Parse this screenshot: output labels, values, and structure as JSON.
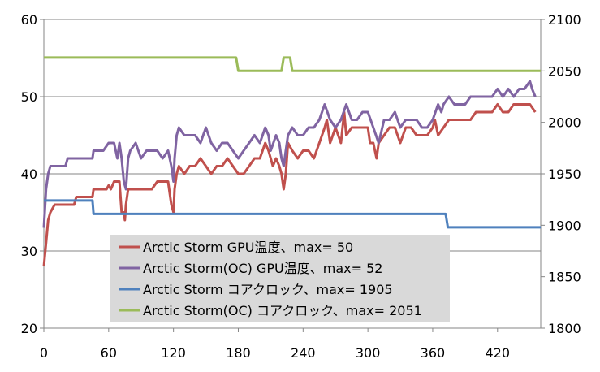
{
  "chart_data": {
    "type": "line",
    "title": "",
    "xlabel": "",
    "ylabel": "",
    "y2label": "",
    "xlim": [
      0,
      460
    ],
    "ylim": [
      20,
      60
    ],
    "y2lim": [
      1800,
      2100
    ],
    "x_ticks": [
      "0",
      "60",
      "120",
      "180",
      "240",
      "300",
      "360",
      "420"
    ],
    "y_ticks": [
      "20",
      "30",
      "40",
      "50",
      "60"
    ],
    "y2_ticks": [
      "1800",
      "1850",
      "1900",
      "1950",
      "2000",
      "2050",
      "2100"
    ],
    "grid": "horizontal",
    "legend_position": "bottom-center",
    "series": [
      {
        "name": "Arctic Storm GPU温度、max= 50",
        "axis": "left",
        "color": "#C0504D",
        "points": [
          [
            0,
            28
          ],
          [
            2,
            31
          ],
          [
            4,
            34
          ],
          [
            6,
            35
          ],
          [
            10,
            36
          ],
          [
            20,
            36
          ],
          [
            22,
            36
          ],
          [
            28,
            36
          ],
          [
            30,
            37
          ],
          [
            35,
            37
          ],
          [
            45,
            37
          ],
          [
            46,
            38
          ],
          [
            55,
            38
          ],
          [
            58,
            38
          ],
          [
            60,
            38.5
          ],
          [
            62,
            38
          ],
          [
            65,
            39
          ],
          [
            70,
            39
          ],
          [
            72,
            35
          ],
          [
            74,
            35
          ],
          [
            75,
            34
          ],
          [
            76,
            36
          ],
          [
            78,
            38
          ],
          [
            80,
            38
          ],
          [
            85,
            38
          ],
          [
            90,
            38
          ],
          [
            95,
            38
          ],
          [
            100,
            38
          ],
          [
            105,
            39
          ],
          [
            110,
            39
          ],
          [
            115,
            39
          ],
          [
            118,
            36
          ],
          [
            120,
            35
          ],
          [
            121,
            38
          ],
          [
            123,
            40
          ],
          [
            125,
            41
          ],
          [
            130,
            40
          ],
          [
            135,
            41
          ],
          [
            140,
            41
          ],
          [
            145,
            42
          ],
          [
            150,
            41
          ],
          [
            155,
            40
          ],
          [
            160,
            41
          ],
          [
            165,
            41
          ],
          [
            170,
            42
          ],
          [
            175,
            41
          ],
          [
            180,
            40
          ],
          [
            185,
            40
          ],
          [
            190,
            41
          ],
          [
            195,
            42
          ],
          [
            200,
            42
          ],
          [
            205,
            44
          ],
          [
            208,
            43
          ],
          [
            210,
            42
          ],
          [
            212,
            41
          ],
          [
            215,
            42
          ],
          [
            218,
            41
          ],
          [
            220,
            40
          ],
          [
            222,
            38
          ],
          [
            224,
            40
          ],
          [
            226,
            44
          ],
          [
            230,
            43
          ],
          [
            235,
            42
          ],
          [
            240,
            43
          ],
          [
            245,
            43
          ],
          [
            250,
            42
          ],
          [
            255,
            44
          ],
          [
            260,
            46
          ],
          [
            262,
            47
          ],
          [
            265,
            44
          ],
          [
            270,
            46
          ],
          [
            275,
            44
          ],
          [
            278,
            48
          ],
          [
            280,
            45
          ],
          [
            285,
            46
          ],
          [
            290,
            46
          ],
          [
            295,
            46
          ],
          [
            300,
            46
          ],
          [
            302,
            44
          ],
          [
            305,
            44
          ],
          [
            308,
            42
          ],
          [
            310,
            44
          ],
          [
            315,
            45
          ],
          [
            320,
            46
          ],
          [
            325,
            46
          ],
          [
            330,
            44
          ],
          [
            335,
            46
          ],
          [
            340,
            46
          ],
          [
            345,
            45
          ],
          [
            350,
            45
          ],
          [
            355,
            45
          ],
          [
            360,
            46
          ],
          [
            362,
            47
          ],
          [
            365,
            45
          ],
          [
            370,
            46
          ],
          [
            375,
            47
          ],
          [
            380,
            47
          ],
          [
            385,
            47
          ],
          [
            390,
            47
          ],
          [
            395,
            47
          ],
          [
            400,
            48
          ],
          [
            405,
            48
          ],
          [
            410,
            48
          ],
          [
            415,
            48
          ],
          [
            420,
            49
          ],
          [
            425,
            48
          ],
          [
            430,
            48
          ],
          [
            435,
            49
          ],
          [
            440,
            49
          ],
          [
            445,
            49
          ],
          [
            450,
            49
          ],
          [
            455,
            48
          ]
        ]
      },
      {
        "name": "Arctic Storm(OC) GPU温度、max= 52",
        "axis": "left",
        "color": "#8064A2",
        "points": [
          [
            0,
            33
          ],
          [
            2,
            38
          ],
          [
            4,
            40
          ],
          [
            6,
            41
          ],
          [
            10,
            41
          ],
          [
            15,
            41
          ],
          [
            20,
            41
          ],
          [
            22,
            42
          ],
          [
            30,
            42
          ],
          [
            35,
            42
          ],
          [
            40,
            42
          ],
          [
            45,
            42
          ],
          [
            46,
            43
          ],
          [
            50,
            43
          ],
          [
            55,
            43
          ],
          [
            60,
            44
          ],
          [
            65,
            44
          ],
          [
            68,
            42
          ],
          [
            70,
            44
          ],
          [
            72,
            42
          ],
          [
            74,
            39
          ],
          [
            76,
            38
          ],
          [
            78,
            42
          ],
          [
            80,
            43
          ],
          [
            85,
            44
          ],
          [
            90,
            42
          ],
          [
            95,
            43
          ],
          [
            100,
            43
          ],
          [
            105,
            43
          ],
          [
            110,
            42
          ],
          [
            115,
            43
          ],
          [
            118,
            41
          ],
          [
            120,
            39
          ],
          [
            121,
            42
          ],
          [
            123,
            45
          ],
          [
            125,
            46
          ],
          [
            130,
            45
          ],
          [
            135,
            45
          ],
          [
            140,
            45
          ],
          [
            145,
            44
          ],
          [
            150,
            46
          ],
          [
            155,
            44
          ],
          [
            160,
            43
          ],
          [
            165,
            44
          ],
          [
            170,
            44
          ],
          [
            175,
            43
          ],
          [
            180,
            42
          ],
          [
            185,
            43
          ],
          [
            190,
            44
          ],
          [
            195,
            45
          ],
          [
            200,
            44
          ],
          [
            205,
            46
          ],
          [
            208,
            45
          ],
          [
            210,
            43
          ],
          [
            215,
            45
          ],
          [
            218,
            44
          ],
          [
            220,
            42
          ],
          [
            222,
            41
          ],
          [
            224,
            43
          ],
          [
            226,
            45
          ],
          [
            230,
            46
          ],
          [
            235,
            45
          ],
          [
            240,
            45
          ],
          [
            245,
            46
          ],
          [
            250,
            46
          ],
          [
            255,
            47
          ],
          [
            260,
            49
          ],
          [
            265,
            47
          ],
          [
            270,
            46
          ],
          [
            275,
            47
          ],
          [
            280,
            49
          ],
          [
            285,
            47
          ],
          [
            290,
            47
          ],
          [
            295,
            48
          ],
          [
            300,
            48
          ],
          [
            305,
            46
          ],
          [
            310,
            44
          ],
          [
            315,
            47
          ],
          [
            320,
            47
          ],
          [
            325,
            48
          ],
          [
            330,
            46
          ],
          [
            335,
            47
          ],
          [
            340,
            47
          ],
          [
            345,
            47
          ],
          [
            350,
            46
          ],
          [
            355,
            46
          ],
          [
            360,
            47
          ],
          [
            365,
            49
          ],
          [
            368,
            48
          ],
          [
            370,
            49
          ],
          [
            375,
            50
          ],
          [
            380,
            49
          ],
          [
            385,
            49
          ],
          [
            390,
            49
          ],
          [
            395,
            50
          ],
          [
            400,
            50
          ],
          [
            405,
            50
          ],
          [
            410,
            50
          ],
          [
            415,
            50
          ],
          [
            420,
            51
          ],
          [
            425,
            50
          ],
          [
            430,
            51
          ],
          [
            435,
            50
          ],
          [
            440,
            51
          ],
          [
            445,
            51
          ],
          [
            450,
            52
          ],
          [
            452,
            51
          ],
          [
            455,
            50
          ]
        ]
      },
      {
        "name": "Arctic Storm コアクロック、max= 1905",
        "axis": "right",
        "color": "#4F81BD",
        "points": [
          [
            0,
            1924
          ],
          [
            45,
            1924
          ],
          [
            46,
            1911
          ],
          [
            372,
            1911
          ],
          [
            374,
            1898
          ],
          [
            460,
            1898
          ]
        ]
      },
      {
        "name": "Arctic Storm(OC) コアクロック、max= 2051",
        "axis": "right",
        "color": "#9BBB59",
        "points": [
          [
            0,
            2063
          ],
          [
            178,
            2063
          ],
          [
            180,
            2050
          ],
          [
            220,
            2050
          ],
          [
            222,
            2063
          ],
          [
            228,
            2063
          ],
          [
            230,
            2050
          ],
          [
            460,
            2050
          ]
        ]
      }
    ]
  }
}
